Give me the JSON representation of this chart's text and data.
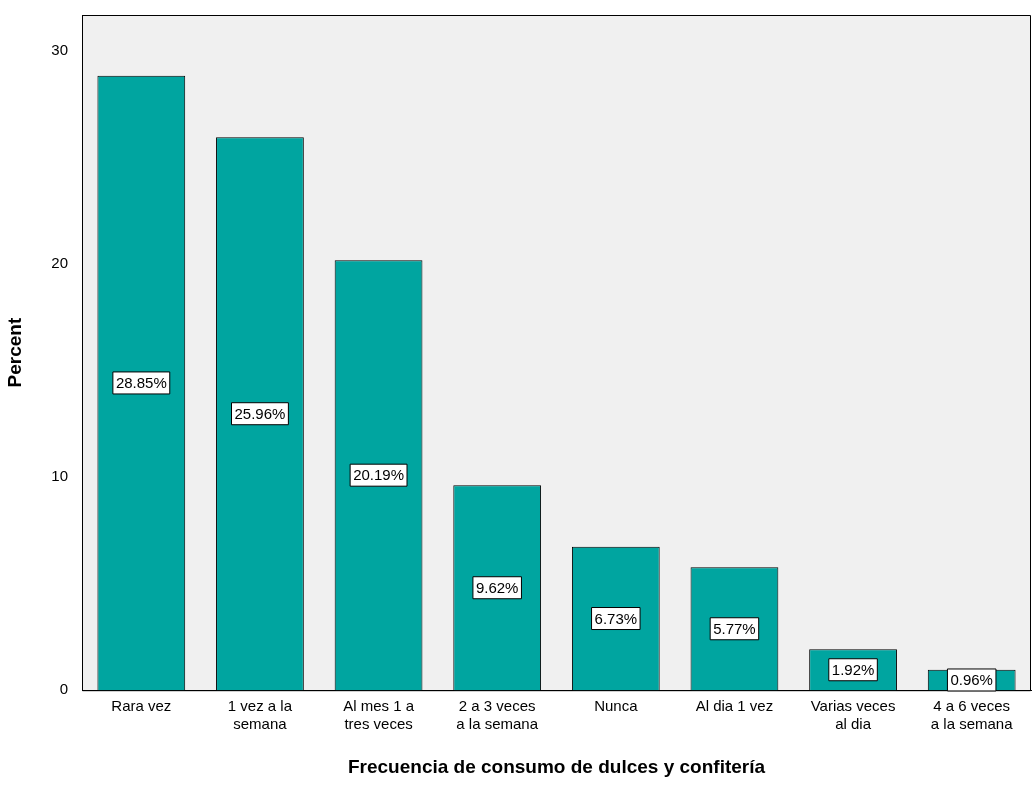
{
  "chart_data": {
    "type": "bar",
    "xlabel": "Frecuencia de consumo de dulces y confitería",
    "ylabel": "Percent",
    "categories": [
      "Rara vez",
      "1 vez a la semana",
      "Al mes 1 a tres veces",
      "2 a 3 veces a la semana",
      "Nunca",
      "Al dia 1 vez",
      "Varias veces al dia",
      "4 a 6 veces a la semana"
    ],
    "values": [
      28.85,
      25.96,
      20.19,
      9.62,
      6.73,
      5.77,
      1.92,
      0.96
    ],
    "value_labels": [
      "28.85%",
      "25.96%",
      "20.19%",
      "9.62%",
      "6.73%",
      "5.77%",
      "1.92%",
      "0.96%"
    ],
    "color": "#00a5a0",
    "ylim": [
      0,
      31.7
    ],
    "yticks": [
      0,
      10,
      20,
      30
    ],
    "grid": false,
    "legend": false
  }
}
